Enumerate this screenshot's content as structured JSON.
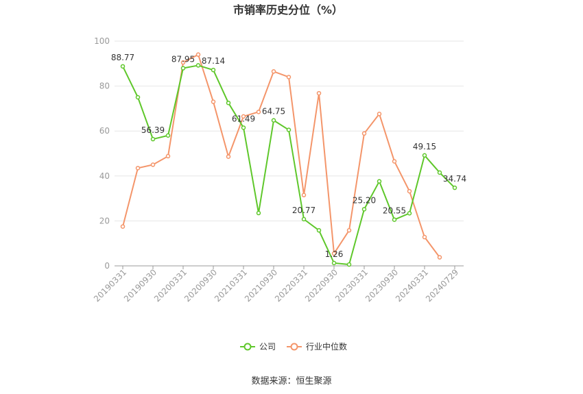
{
  "chart_data": {
    "type": "line",
    "title": "市销率历史分位（%）",
    "xlabel": "",
    "ylabel": "",
    "ylim": [
      0,
      100
    ],
    "yticks": [
      0,
      20,
      40,
      60,
      80,
      100
    ],
    "x_tick_labels": [
      "20190331",
      "20190930",
      "20200331",
      "20200930",
      "20210331",
      "20210930",
      "20220331",
      "20220930",
      "20230331",
      "20230930",
      "20240331",
      "20240729"
    ],
    "x": [
      "20190331",
      "20190630",
      "20190930",
      "20191231",
      "20200331",
      "20200630",
      "20200930",
      "20201231",
      "20210331",
      "20210630",
      "20210930",
      "20211231",
      "20220331",
      "20220630",
      "20220930",
      "20221231",
      "20230331",
      "20230630",
      "20230930",
      "20231231",
      "20240331",
      "20240630",
      "20240729"
    ],
    "series": [
      {
        "name": "公司",
        "color": "#5ec72a",
        "values": [
          88.77,
          75.0,
          56.39,
          58.0,
          87.95,
          89.2,
          87.14,
          72.5,
          61.49,
          23.5,
          64.75,
          60.5,
          20.77,
          15.8,
          1.26,
          0.6,
          25.2,
          37.6,
          20.55,
          23.4,
          49.15,
          41.5,
          34.74
        ]
      },
      {
        "name": "行业中位数",
        "color": "#f4956a",
        "values": [
          17.5,
          43.5,
          45.0,
          48.8,
          90.5,
          94.0,
          73.0,
          48.6,
          66.5,
          68.5,
          86.5,
          84.0,
          31.5,
          76.8,
          5.5,
          15.8,
          58.9,
          67.6,
          46.5,
          33.2,
          12.8,
          3.8,
          null
        ]
      }
    ],
    "data_labels": [
      {
        "series": 0,
        "index": 0,
        "text": "88.77"
      },
      {
        "series": 0,
        "index": 2,
        "text": "56.39"
      },
      {
        "series": 0,
        "index": 4,
        "text": "87.95"
      },
      {
        "series": 0,
        "index": 6,
        "text": "87.14"
      },
      {
        "series": 0,
        "index": 8,
        "text": "61.49"
      },
      {
        "series": 0,
        "index": 10,
        "text": "64.75"
      },
      {
        "series": 0,
        "index": 12,
        "text": "20.77"
      },
      {
        "series": 0,
        "index": 14,
        "text": "1.26"
      },
      {
        "series": 0,
        "index": 16,
        "text": "25.20"
      },
      {
        "series": 0,
        "index": 18,
        "text": "20.55"
      },
      {
        "series": 0,
        "index": 20,
        "text": "49.15"
      },
      {
        "series": 0,
        "index": 22,
        "text": "34.74"
      }
    ],
    "legend": [
      "公司",
      "行业中位数"
    ],
    "legend_position": "bottom",
    "grid": true
  },
  "footer": {
    "source": "数据来源：恒生聚源"
  }
}
